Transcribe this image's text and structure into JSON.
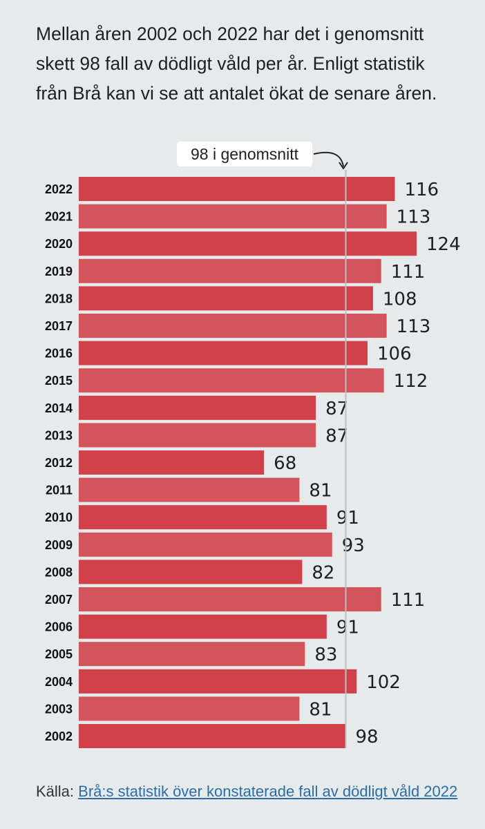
{
  "intro": "Mellan åren 2002 och 2022 har det i genomsnitt skett 98 fall av dödligt våld per år. Enligt statistik från Brå kan vi se att antalet ökat de senare åren.",
  "source": {
    "prefix": "Källa: ",
    "link_text": "Brå:s statistik över konstaterade fall av dödligt våld 2022"
  },
  "colors": {
    "bar_primary": "#d1414a",
    "bar_secondary": "#d4545b",
    "average_line": "#b9bfc2",
    "background": "#e6eaeb"
  },
  "chart_data": {
    "type": "bar",
    "orientation": "horizontal",
    "categories": [
      "2022",
      "2021",
      "2020",
      "2019",
      "2018",
      "2017",
      "2016",
      "2015",
      "2014",
      "2013",
      "2012",
      "2011",
      "2010",
      "2009",
      "2008",
      "2007",
      "2006",
      "2005",
      "2004",
      "2003",
      "2002"
    ],
    "values": [
      116,
      113,
      124,
      111,
      108,
      113,
      106,
      112,
      87,
      87,
      68,
      81,
      91,
      93,
      82,
      111,
      91,
      83,
      102,
      81,
      98
    ],
    "xlim": [
      0,
      124
    ],
    "average": {
      "value": 98,
      "label": "98 i genomsnitt"
    },
    "data_labels": true,
    "grid": false
  }
}
